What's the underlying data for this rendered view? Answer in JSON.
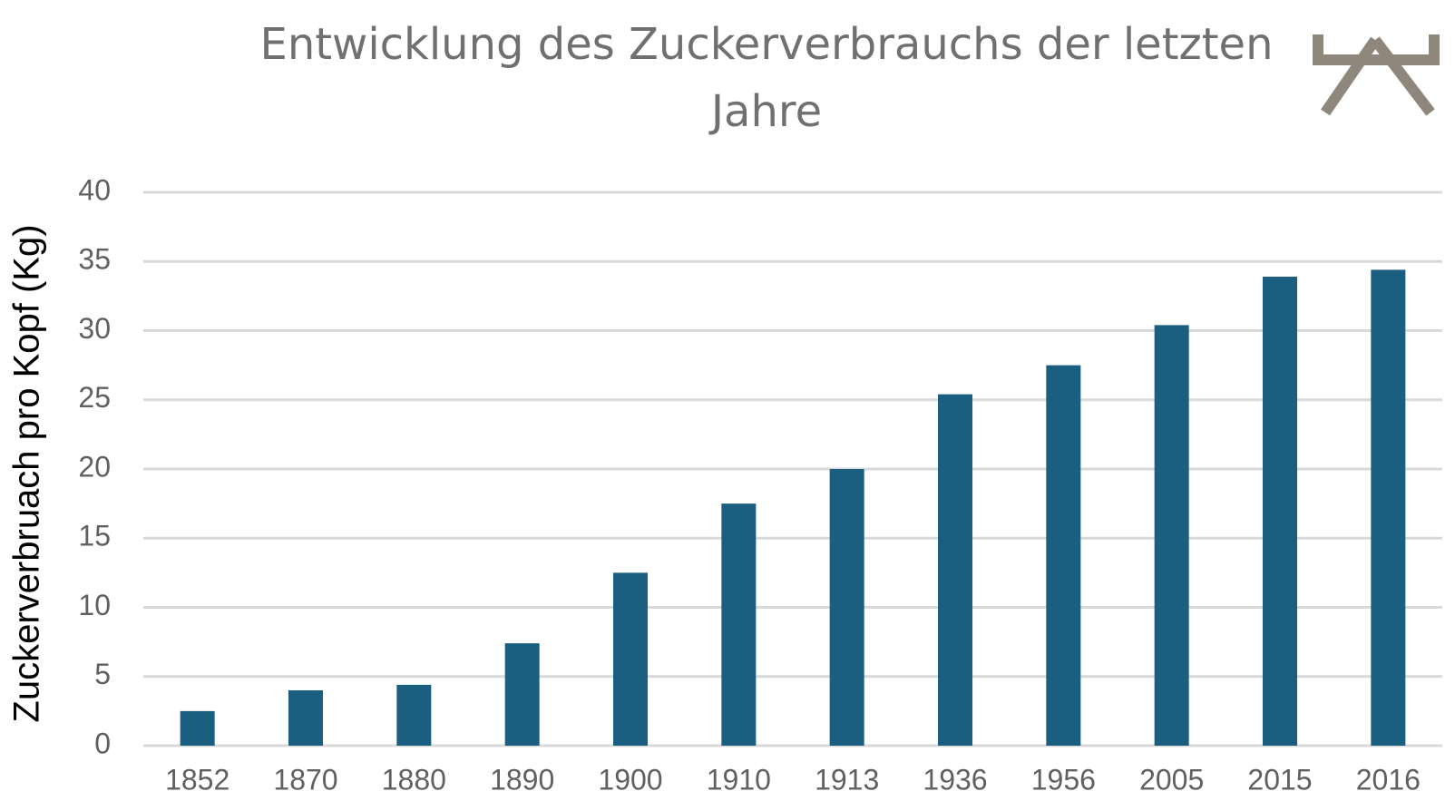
{
  "chart_data": {
    "type": "bar",
    "title": "Entwicklung des Zuckerverbrauchs der letzten Jahre",
    "y_label": "Zuckerverbruach pro Kopf (Kg)",
    "categories": [
      "1852",
      "1870",
      "1880",
      "1890",
      "1900",
      "1910",
      "1913",
      "1936",
      "1956",
      "2005",
      "2015",
      "2016"
    ],
    "values": [
      2.5,
      4,
      4.4,
      7.4,
      12.5,
      17.5,
      20,
      25.4,
      27.5,
      30.4,
      33.9,
      34.4
    ],
    "color": "#1a5e80",
    "ylim": [
      0,
      40
    ],
    "yticks": [
      0,
      5,
      10,
      15,
      20,
      25,
      30,
      35,
      40
    ],
    "grid": true
  }
}
